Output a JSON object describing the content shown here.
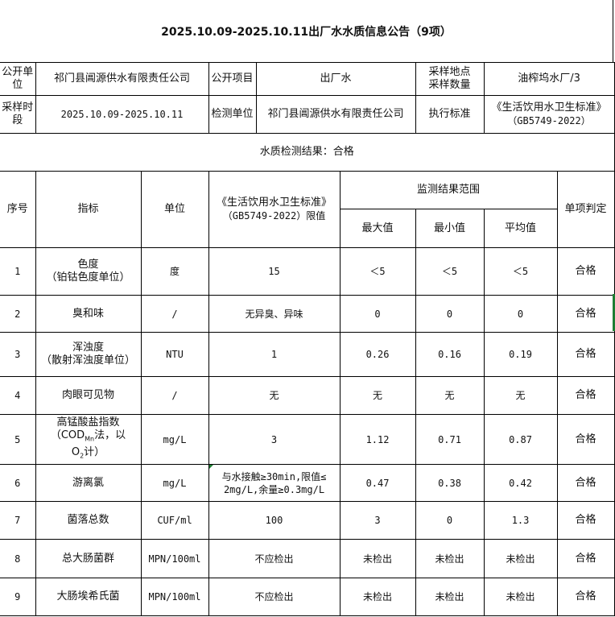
{
  "title": "2025.10.09-2025.10.11出厂水水质信息公告（9项）",
  "info": {
    "publish_unit_label": "公开单位",
    "publish_unit": "祁门县阊源供水有限责任公司",
    "publish_item_label": "公开项目",
    "publish_item": "出厂水",
    "sample_site_label": "采样地点采样数量",
    "sample_site": "油榨坞水厂/3",
    "period_label": "采样时段",
    "period": "2025.10.09-2025.10.11",
    "test_unit_label": "检测单位",
    "test_unit": "祁门县阊源供水有限责任公司",
    "standard_label": "执行标准",
    "standard": "《生活饮用水卫生标准》",
    "standard_code": "（GB5749-2022）"
  },
  "result": "水质检测结果：合格",
  "headers": {
    "no": "序号",
    "indicator": "指标",
    "unit": "单位",
    "limit": "《生活饮用水卫生标准》",
    "limit_code": "（GB5749-2022）限值",
    "range": "监测结果范围",
    "max": "最大值",
    "min": "最小值",
    "avg": "平均值",
    "judge": "单项判定"
  },
  "rows": [
    {
      "no": "1",
      "indicator": "色度",
      "indicator2": "（铂钴色度单位）",
      "unit": "度",
      "limit": "15",
      "max": "＜5",
      "min": "＜5",
      "avg": "＜5",
      "judge": "合格"
    },
    {
      "no": "2",
      "indicator": "臭和味",
      "indicator2": "",
      "unit": "/",
      "limit": "无异臭、异味",
      "max": "0",
      "min": "0",
      "avg": "0",
      "judge": "合格"
    },
    {
      "no": "3",
      "indicator": "浑浊度",
      "indicator2": "（散射浑浊度单位）",
      "unit": "NTU",
      "limit": "1",
      "max": "0.26",
      "min": "0.16",
      "avg": "0.19",
      "judge": "合格"
    },
    {
      "no": "4",
      "indicator": "肉眼可见物",
      "indicator2": "",
      "unit": "/",
      "limit": "无",
      "max": "无",
      "min": "无",
      "avg": "无",
      "judge": "合格"
    },
    {
      "no": "5",
      "indicator": "高锰酸盐指数",
      "indicator2": "（COD",
      "indicator2_sub": "Mn",
      "indicator2_tail": "法，以",
      "indicator3": "O",
      "indicator3_sub": "2",
      "indicator3_tail": "计）",
      "unit": "mg/L",
      "limit": "3",
      "max": "1.12",
      "min": "0.71",
      "avg": "0.87",
      "judge": "合格"
    },
    {
      "no": "6",
      "indicator": "游离氯",
      "indicator2": "",
      "unit": "mg/L",
      "limit": "与水接触≥30min,限值≤",
      "limit2": "2mg/L,余量≥0.3mg/L",
      "max": "0.47",
      "min": "0.38",
      "avg": "0.42",
      "judge": "合格"
    },
    {
      "no": "7",
      "indicator": "菌落总数",
      "indicator2": "",
      "unit": "CUF/ml",
      "limit": "100",
      "max": "3",
      "min": "0",
      "avg": "1.3",
      "judge": "合格"
    },
    {
      "no": "8",
      "indicator": "总大肠菌群",
      "indicator2": "",
      "unit": "MPN/100ml",
      "limit": "不应检出",
      "max": "未检出",
      "min": "未检出",
      "avg": "未检出",
      "judge": "合格"
    },
    {
      "no": "9",
      "indicator": "大肠埃希氏菌",
      "indicator2": "",
      "unit": "MPN/100ml",
      "limit": "不应检出",
      "max": "未检出",
      "min": "未检出",
      "avg": "未检出",
      "judge": "合格"
    }
  ]
}
